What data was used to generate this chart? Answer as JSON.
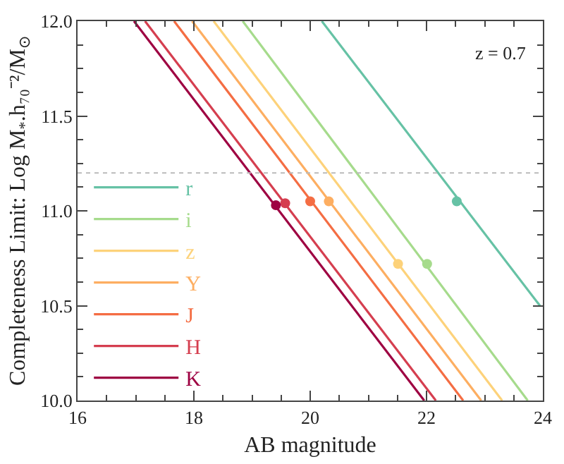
{
  "chart_data": {
    "type": "line",
    "xlabel": "AB magnitude",
    "ylabel": "Completeness Limit: Log M$_{*}$.h₇₀⁻²/M$_{⊙}$",
    "xlim": [
      16,
      24
    ],
    "ylim": [
      10,
      12
    ],
    "xticks": [
      16,
      18,
      20,
      22,
      24
    ],
    "yticks": [
      {
        "value": 10,
        "label": "10.0"
      },
      {
        "value": 10.5,
        "label": "10.5"
      },
      {
        "value": 11,
        "label": "11.0"
      },
      {
        "value": 11.5,
        "label": "11.5"
      },
      {
        "value": 12,
        "label": "12.0"
      }
    ],
    "grid": false,
    "legend": "left",
    "line_style": "solid",
    "annotations": [
      "z = 0.7"
    ],
    "ref_lines": [
      {
        "axis": "y",
        "value": 11.2,
        "color": "#bbbbbb",
        "line_style": "dotted"
      }
    ],
    "series": [
      {
        "name": "r",
        "color": "#66c2a5",
        "x": [
          20.2,
          23.95
        ],
        "values": [
          12,
          10.5
        ]
      },
      {
        "name": "i",
        "color": "#a6db8c",
        "x": [
          18.84,
          23.74
        ],
        "values": [
          12,
          10
        ]
      },
      {
        "name": "z",
        "color": "#fdd27a",
        "x": [
          18.34,
          23.3
        ],
        "values": [
          12,
          10
        ]
      },
      {
        "name": "Y",
        "color": "#fdae61",
        "x": [
          17.97,
          22.94
        ],
        "values": [
          12,
          10
        ]
      },
      {
        "name": "J",
        "color": "#f46d43",
        "x": [
          17.66,
          22.63
        ],
        "values": [
          12,
          10
        ]
      },
      {
        "name": "H",
        "color": "#d53e4f",
        "x": [
          17.16,
          22.16
        ],
        "values": [
          12,
          10
        ]
      },
      {
        "name": "K",
        "color": "#9e0142",
        "x": [
          16.97,
          21.96
        ],
        "values": [
          12,
          10
        ]
      },
      {
        "type": "scatter",
        "marker": "circle",
        "colors": [
          "#66c2a5",
          "#a6db8c",
          "#fdd27a",
          "#fdae61",
          "#f46d43",
          "#d53e4f",
          "#9e0142"
        ],
        "x": [
          22.52,
          22.01,
          21.51,
          20.32,
          20.0,
          19.57,
          19.41
        ],
        "values": [
          11.05,
          10.72,
          10.72,
          11.05,
          11.05,
          11.04,
          11.03
        ]
      }
    ]
  }
}
